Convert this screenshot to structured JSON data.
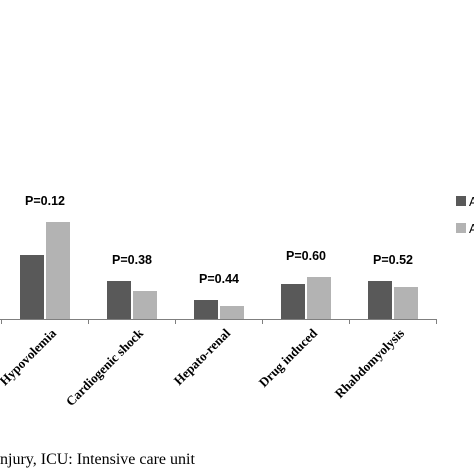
{
  "chart_data": {
    "type": "bar",
    "categories": [
      "Hypovolemia",
      "Cardiogenic shock",
      "Hepato-renal",
      "Drug induced",
      "Rhabdomyolysis"
    ],
    "p_values": [
      "P=0.12",
      "P=0.38",
      "P=0.44",
      "P=0.60",
      "P=0.52"
    ],
    "series": [
      {
        "name": "A",
        "color": "#595959",
        "values": [
          64,
          38,
          19,
          35,
          38
        ]
      },
      {
        "name": "A",
        "color": "#b3b3b3",
        "values": [
          97,
          28,
          13,
          42,
          32
        ]
      }
    ],
    "ylim": [
      0,
      110
    ],
    "grid": false,
    "legend_position": "right"
  },
  "caption": "njury, ICU: Intensive care unit"
}
